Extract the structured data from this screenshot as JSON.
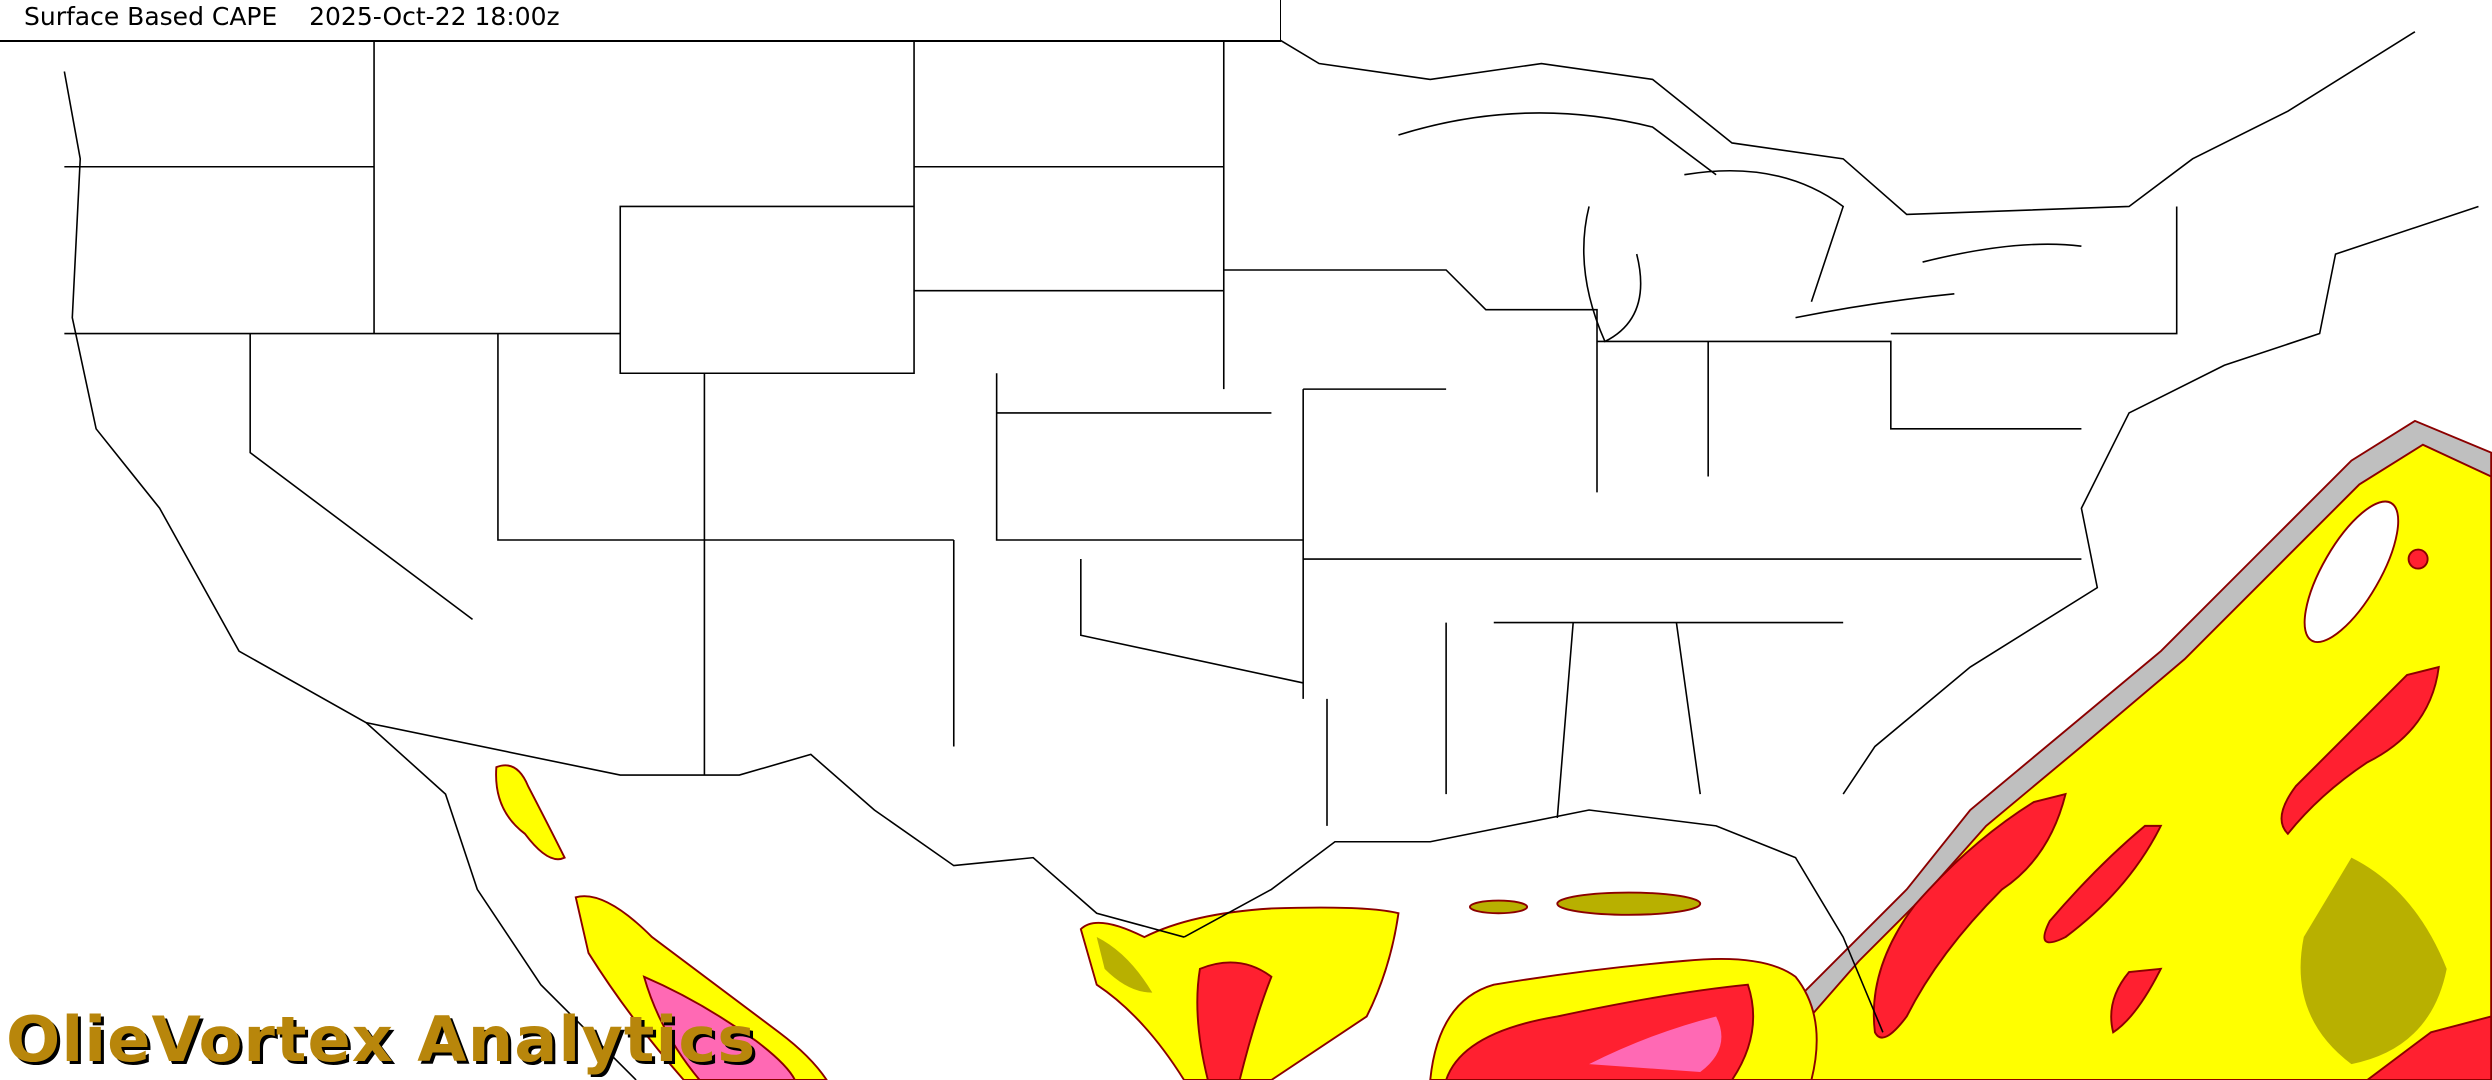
{
  "map": {
    "field": "Surface Based CAPE",
    "valid_time": "2025-Oct-22 18:00z",
    "region": "CONUS",
    "colors": {
      "low": "#a0a0a0",
      "mid": "#ffff00",
      "mid_dark": "#b0a800",
      "high": "#ff2030",
      "very_high": "#ff69b4",
      "contour": "#8b0000",
      "borders": "#000000"
    }
  },
  "branding": {
    "watermark": "OlieVortex Analytics",
    "color": "#b8860b"
  }
}
